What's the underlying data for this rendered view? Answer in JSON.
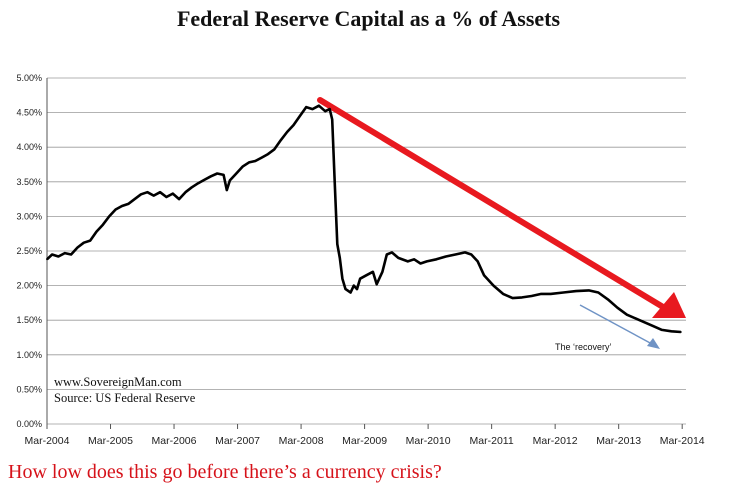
{
  "chart_data": {
    "type": "line",
    "title": "Federal Reserve Capital as a % of Assets",
    "footer": "How low does this go before there’s a currency crisis?",
    "notes": [
      "www.SovereignMan.com",
      "Source: US Federal Reserve"
    ],
    "annotation": "The ‘recovery’",
    "xlabel": "",
    "ylabel": "",
    "ylim": [
      0,
      5
    ],
    "yticks": [
      "0.00%",
      "0.50%",
      "1.00%",
      "1.50%",
      "2.00%",
      "2.50%",
      "3.00%",
      "3.50%",
      "4.00%",
      "4.50%",
      "5.00%"
    ],
    "xticks": [
      "Mar-2004",
      "Mar-2005",
      "Mar-2006",
      "Mar-2007",
      "Mar-2008",
      "Mar-2009",
      "Mar-2010",
      "Mar-2011",
      "Mar-2012",
      "Mar-2013",
      "Mar-2014"
    ],
    "grid": "horizontal",
    "series": [
      {
        "color": "#000000",
        "points": [
          [
            2004.17,
            2.38
          ],
          [
            2004.25,
            2.45
          ],
          [
            2004.35,
            2.42
          ],
          [
            2004.45,
            2.47
          ],
          [
            2004.55,
            2.45
          ],
          [
            2004.65,
            2.55
          ],
          [
            2004.75,
            2.62
          ],
          [
            2004.85,
            2.65
          ],
          [
            2004.95,
            2.78
          ],
          [
            2005.05,
            2.88
          ],
          [
            2005.15,
            3.0
          ],
          [
            2005.25,
            3.1
          ],
          [
            2005.35,
            3.15
          ],
          [
            2005.45,
            3.18
          ],
          [
            2005.55,
            3.25
          ],
          [
            2005.65,
            3.32
          ],
          [
            2005.75,
            3.35
          ],
          [
            2005.85,
            3.3
          ],
          [
            2005.95,
            3.35
          ],
          [
            2006.05,
            3.28
          ],
          [
            2006.15,
            3.33
          ],
          [
            2006.25,
            3.25
          ],
          [
            2006.35,
            3.35
          ],
          [
            2006.45,
            3.42
          ],
          [
            2006.55,
            3.48
          ],
          [
            2006.65,
            3.53
          ],
          [
            2006.75,
            3.58
          ],
          [
            2006.85,
            3.62
          ],
          [
            2006.95,
            3.6
          ],
          [
            2007.0,
            3.38
          ],
          [
            2007.05,
            3.52
          ],
          [
            2007.15,
            3.62
          ],
          [
            2007.25,
            3.72
          ],
          [
            2007.35,
            3.78
          ],
          [
            2007.45,
            3.8
          ],
          [
            2007.55,
            3.85
          ],
          [
            2007.65,
            3.9
          ],
          [
            2007.75,
            3.97
          ],
          [
            2007.85,
            4.1
          ],
          [
            2007.95,
            4.22
          ],
          [
            2008.05,
            4.32
          ],
          [
            2008.15,
            4.45
          ],
          [
            2008.25,
            4.58
          ],
          [
            2008.35,
            4.55
          ],
          [
            2008.45,
            4.6
          ],
          [
            2008.55,
            4.52
          ],
          [
            2008.62,
            4.55
          ],
          [
            2008.66,
            4.4
          ],
          [
            2008.7,
            3.5
          ],
          [
            2008.74,
            2.6
          ],
          [
            2008.78,
            2.4
          ],
          [
            2008.82,
            2.1
          ],
          [
            2008.87,
            1.95
          ],
          [
            2008.95,
            1.9
          ],
          [
            2009.0,
            2.0
          ],
          [
            2009.05,
            1.95
          ],
          [
            2009.1,
            2.1
          ],
          [
            2009.2,
            2.15
          ],
          [
            2009.3,
            2.2
          ],
          [
            2009.36,
            2.02
          ],
          [
            2009.45,
            2.2
          ],
          [
            2009.52,
            2.45
          ],
          [
            2009.6,
            2.48
          ],
          [
            2009.7,
            2.4
          ],
          [
            2009.85,
            2.35
          ],
          [
            2009.95,
            2.38
          ],
          [
            2010.05,
            2.32
          ],
          [
            2010.15,
            2.35
          ],
          [
            2010.3,
            2.38
          ],
          [
            2010.45,
            2.42
          ],
          [
            2010.6,
            2.45
          ],
          [
            2010.75,
            2.48
          ],
          [
            2010.85,
            2.45
          ],
          [
            2010.95,
            2.35
          ],
          [
            2011.05,
            2.15
          ],
          [
            2011.2,
            2.0
          ],
          [
            2011.35,
            1.88
          ],
          [
            2011.5,
            1.82
          ],
          [
            2011.65,
            1.83
          ],
          [
            2011.8,
            1.85
          ],
          [
            2011.95,
            1.88
          ],
          [
            2012.1,
            1.88
          ],
          [
            2012.3,
            1.9
          ],
          [
            2012.5,
            1.92
          ],
          [
            2012.7,
            1.93
          ],
          [
            2012.85,
            1.9
          ],
          [
            2013.0,
            1.8
          ],
          [
            2013.15,
            1.68
          ],
          [
            2013.3,
            1.58
          ],
          [
            2013.5,
            1.5
          ],
          [
            2013.7,
            1.42
          ],
          [
            2013.85,
            1.36
          ],
          [
            2014.0,
            1.34
          ],
          [
            2014.15,
            1.33
          ]
        ]
      }
    ]
  }
}
